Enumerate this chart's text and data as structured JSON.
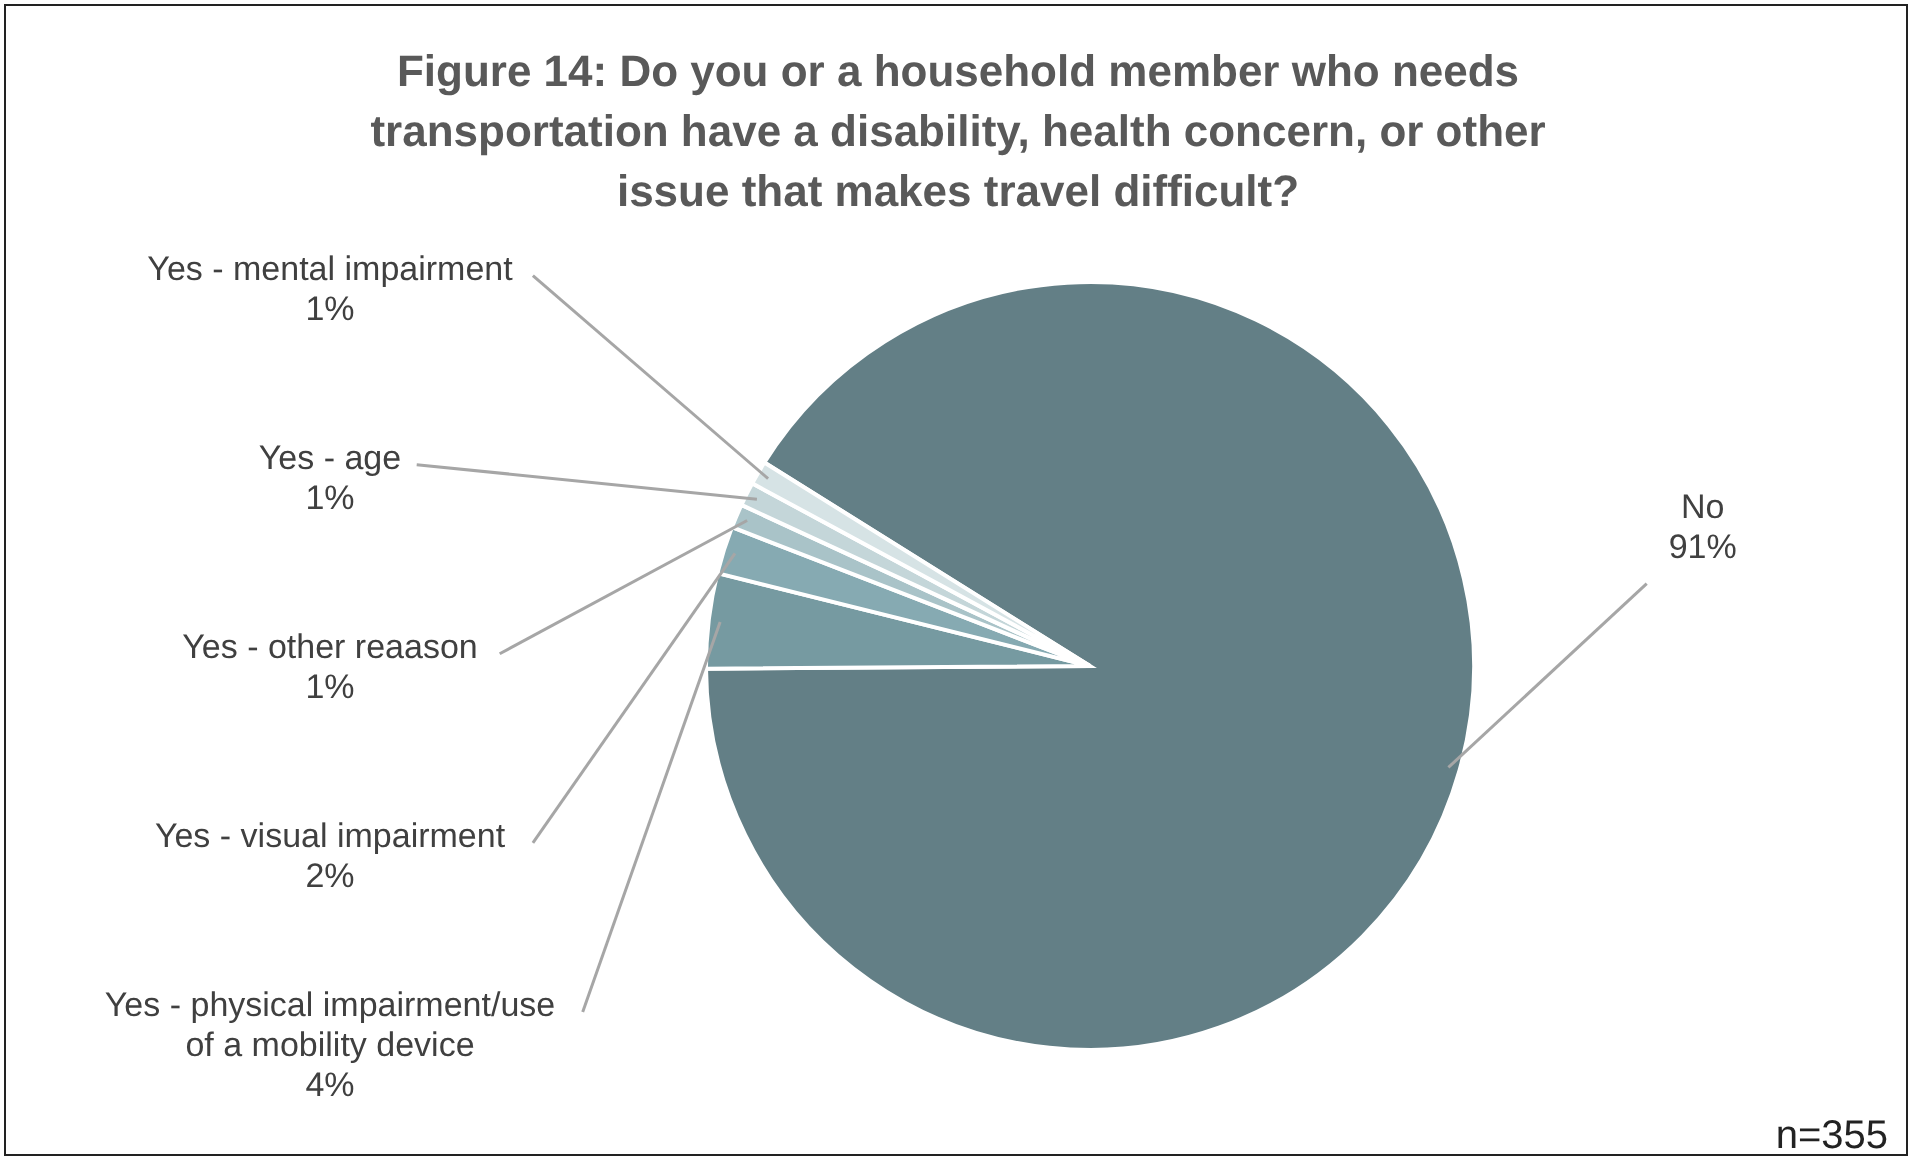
{
  "chart_data": {
    "type": "pie",
    "title": "Figure 14: Do you or a household member who needs transportation have a disability, health concern, or other issue that makes travel difficult?",
    "categories": [
      "No",
      "Yes - physical impairment/use of a mobility device",
      "Yes - visual impairment",
      "Yes - other reaason",
      "Yes - age",
      "Yes - mental impairment"
    ],
    "values": [
      91,
      4,
      2,
      1,
      1,
      1
    ],
    "value_labels": [
      "91%",
      "4%",
      "2%",
      "1%",
      "1%",
      "1%"
    ],
    "colors": [
      "#637f86",
      "#769aa1",
      "#86aab2",
      "#a9c3c8",
      "#c4d6d9",
      "#d6e3e5"
    ],
    "annotations": [
      "n=355"
    ]
  }
}
